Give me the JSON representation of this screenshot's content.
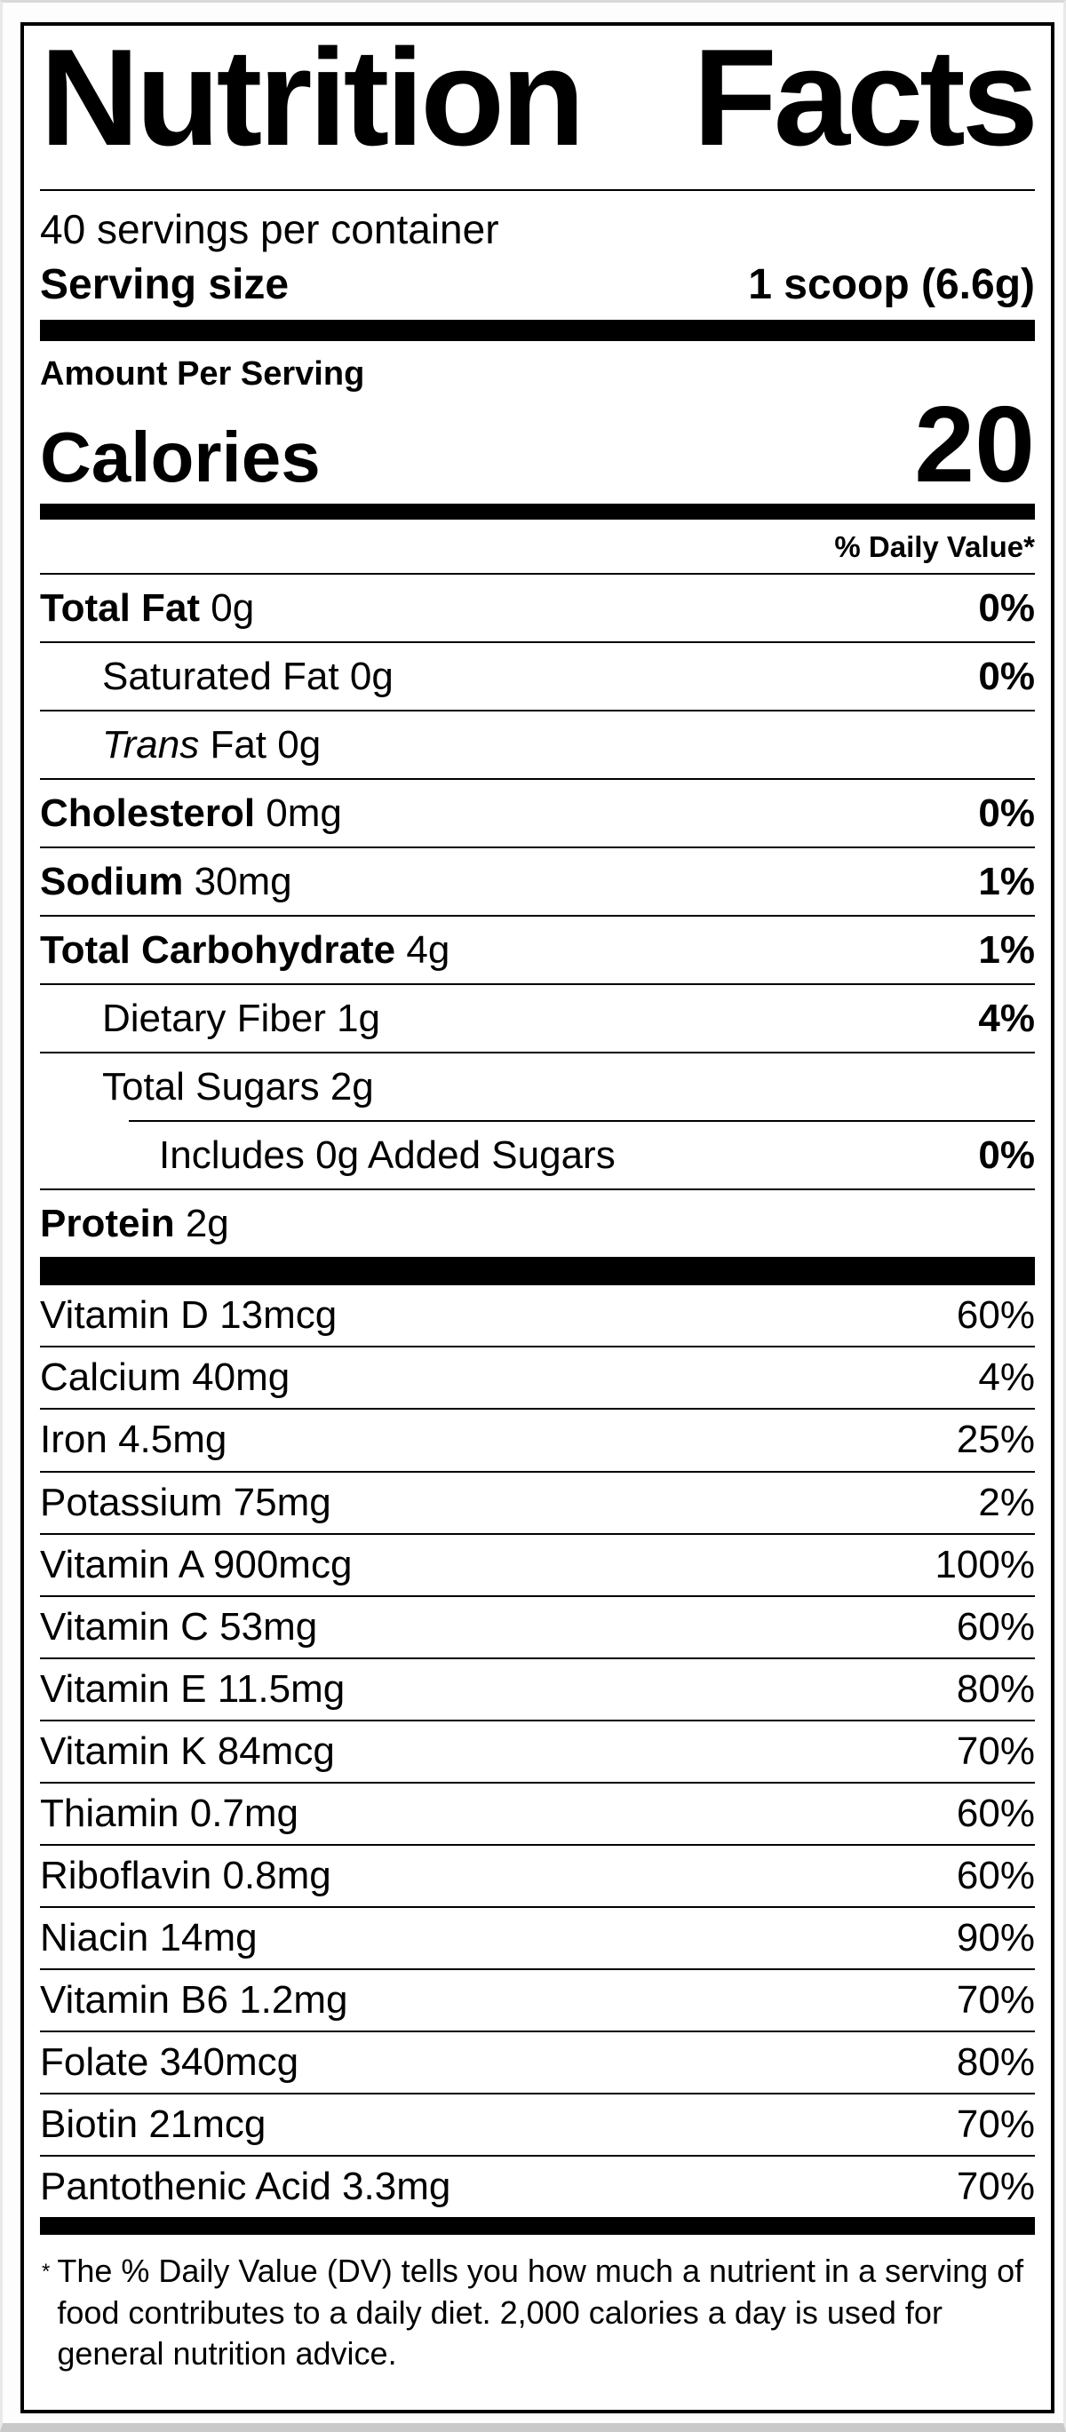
{
  "label": {
    "title": "Nutrition Facts",
    "servings_per_container": "40 servings per container",
    "serving_size_label": "Serving size",
    "serving_size_value": "1 scoop (6.6g)",
    "amount_per_serving": "Amount Per Serving",
    "calories_label": "Calories",
    "calories_value": "20",
    "daily_value_header": "% Daily Value*",
    "nutrients": [
      {
        "name": "Total Fat",
        "amount": "0g",
        "dv": "0%"
      },
      {
        "name": "Saturated Fat",
        "amount": "0g",
        "dv": "0%"
      },
      {
        "name_italic": "Trans",
        "name": "Fat",
        "amount": "0g",
        "dv": ""
      },
      {
        "name": "Cholesterol",
        "amount": "0mg",
        "dv": "0%"
      },
      {
        "name": "Sodium",
        "amount": "30mg",
        "dv": "1%"
      },
      {
        "name": "Total Carbohydrate",
        "amount": "4g",
        "dv": "1%"
      },
      {
        "name": "Dietary Fiber",
        "amount": "1g",
        "dv": "4%"
      },
      {
        "name": "Total Sugars",
        "amount": "2g",
        "dv": ""
      },
      {
        "name": "Includes 0g Added Sugars",
        "amount": "",
        "dv": "0%"
      },
      {
        "name": "Protein",
        "amount": "2g",
        "dv": ""
      }
    ],
    "vitamins": [
      {
        "name": "Vitamin D",
        "amount": "13mcg",
        "dv": "60%"
      },
      {
        "name": "Calcium",
        "amount": "40mg",
        "dv": "4%"
      },
      {
        "name": "Iron",
        "amount": "4.5mg",
        "dv": "25%"
      },
      {
        "name": "Potassium",
        "amount": "75mg",
        "dv": "2%"
      },
      {
        "name": "Vitamin A",
        "amount": "900mcg",
        "dv": "100%"
      },
      {
        "name": "Vitamin C",
        "amount": "53mg",
        "dv": "60%"
      },
      {
        "name": "Vitamin E",
        "amount": "11.5mg",
        "dv": "80%"
      },
      {
        "name": "Vitamin K",
        "amount": "84mcg",
        "dv": "70%"
      },
      {
        "name": "Thiamin",
        "amount": "0.7mg",
        "dv": "60%"
      },
      {
        "name": "Riboflavin",
        "amount": "0.8mg",
        "dv": "60%"
      },
      {
        "name": "Niacin",
        "amount": "14mg",
        "dv": "90%"
      },
      {
        "name": "Vitamin B6",
        "amount": "1.2mg",
        "dv": "70%"
      },
      {
        "name": "Folate",
        "amount": "340mcg",
        "dv": "80%"
      },
      {
        "name": "Biotin",
        "amount": "21mcg",
        "dv": "70%"
      },
      {
        "name": "Pantothenic Acid",
        "amount": "3.3mg",
        "dv": "70%"
      }
    ],
    "footnote_marker": "*",
    "footnote": "The % Daily Value (DV) tells you how much a nutrient in a serving of food contributes to a daily diet. 2,000 calories a day is used for general nutrition advice."
  },
  "colors": {
    "text": "#000000",
    "label_background": "#ffffff",
    "label_border": "#000000",
    "page_edge": "#d9d9d9"
  }
}
